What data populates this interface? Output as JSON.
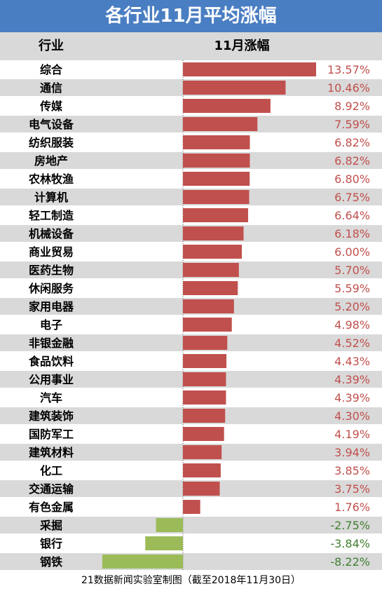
{
  "title": "各行业11月平均涨幅",
  "header": {
    "category_label": "行业",
    "value_label": "11月涨幅"
  },
  "footer": "21数据新闻实验室制图（截至2018年11月30日）",
  "colors": {
    "title_bg": "#4a7ec2",
    "positive": "#c0504d",
    "negative": "#9bbb59",
    "stripe": "#d9d9d9",
    "header_bg": "#d9d9d9"
  },
  "chart_data": {
    "type": "bar",
    "orientation": "horizontal",
    "title": "各行业11月平均涨幅",
    "xlabel": "",
    "ylabel": "",
    "unit": "%",
    "categories": [
      "综合",
      "通信",
      "传媒",
      "电气设备",
      "纺织服装",
      "房地产",
      "农林牧渔",
      "计算机",
      "轻工制造",
      "机械设备",
      "商业贸易",
      "医药生物",
      "休闲服务",
      "家用电器",
      "电子",
      "非银金融",
      "食品饮料",
      "公用事业",
      "汽车",
      "建筑装饰",
      "国防军工",
      "建筑材料",
      "化工",
      "交通运输",
      "有色金属",
      "采掘",
      "银行",
      "钢铁"
    ],
    "values": [
      13.57,
      10.46,
      8.92,
      7.59,
      6.82,
      6.82,
      6.8,
      6.75,
      6.64,
      6.18,
      6.0,
      5.7,
      5.59,
      5.2,
      4.98,
      4.52,
      4.43,
      4.39,
      4.39,
      4.3,
      4.19,
      3.94,
      3.85,
      3.75,
      1.76,
      -2.75,
      -3.84,
      -8.22
    ],
    "labels": [
      "13.57%",
      "10.46%",
      "8.92%",
      "7.59%",
      "6.82%",
      "6.82%",
      "6.80%",
      "6.75%",
      "6.64%",
      "6.18%",
      "6.00%",
      "5.70%",
      "5.59%",
      "5.20%",
      "4.98%",
      "4.52%",
      "4.43%",
      "4.39%",
      "4.39%",
      "4.30%",
      "4.19%",
      "3.94%",
      "3.85%",
      "3.75%",
      "1.76%",
      "-2.75%",
      "-3.84%",
      "-8.22%"
    ]
  }
}
